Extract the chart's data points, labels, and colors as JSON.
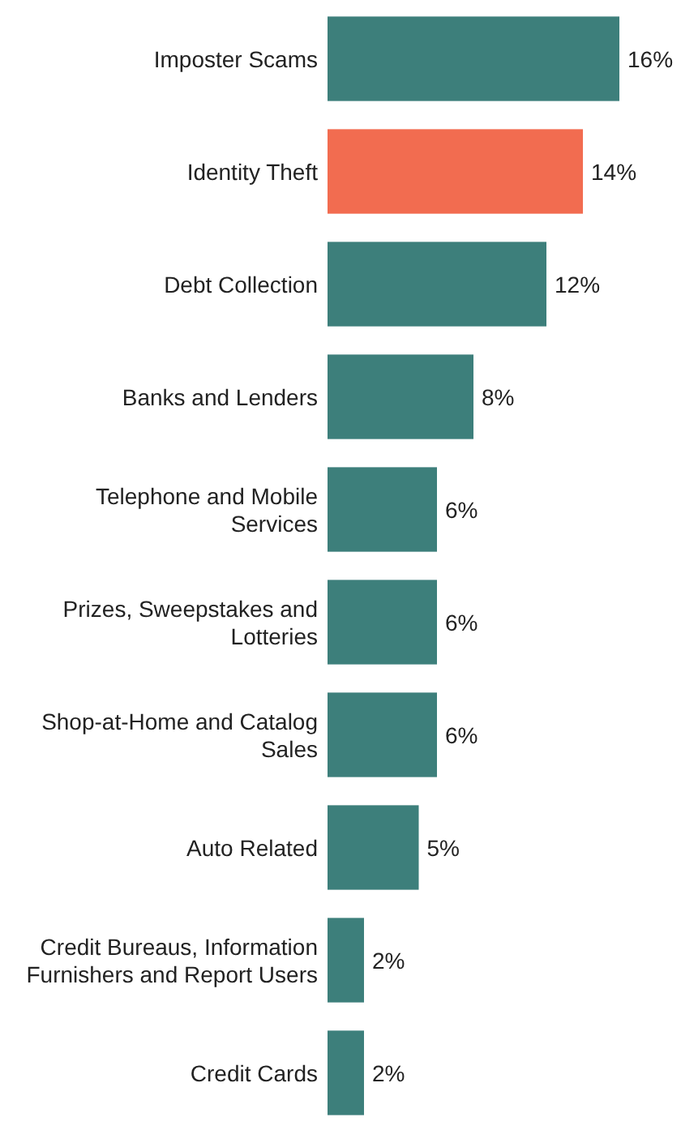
{
  "chart_data": {
    "type": "bar",
    "orientation": "horizontal",
    "categories": [
      "Imposter Scams",
      "Identity Theft",
      "Debt Collection",
      "Banks and Lenders",
      "Telephone and Mobile Services",
      "Prizes, Sweepstakes and Lotteries",
      "Shop-at-Home and Catalog Sales",
      "Auto Related",
      "Credit Bureaus, Information Furnishers and Report Users",
      "Credit Cards"
    ],
    "values": [
      16,
      14,
      12,
      8,
      6,
      6,
      6,
      5,
      2,
      2
    ],
    "colors": [
      "#3d7f7b",
      "#f26c50",
      "#3d7f7b",
      "#3d7f7b",
      "#3d7f7b",
      "#3d7f7b",
      "#3d7f7b",
      "#3d7f7b",
      "#3d7f7b",
      "#3d7f7b"
    ],
    "value_labels": [
      "16%",
      "14%",
      "12%",
      "8%",
      "6%",
      "6%",
      "6%",
      "5%",
      "2%",
      "2%"
    ]
  }
}
